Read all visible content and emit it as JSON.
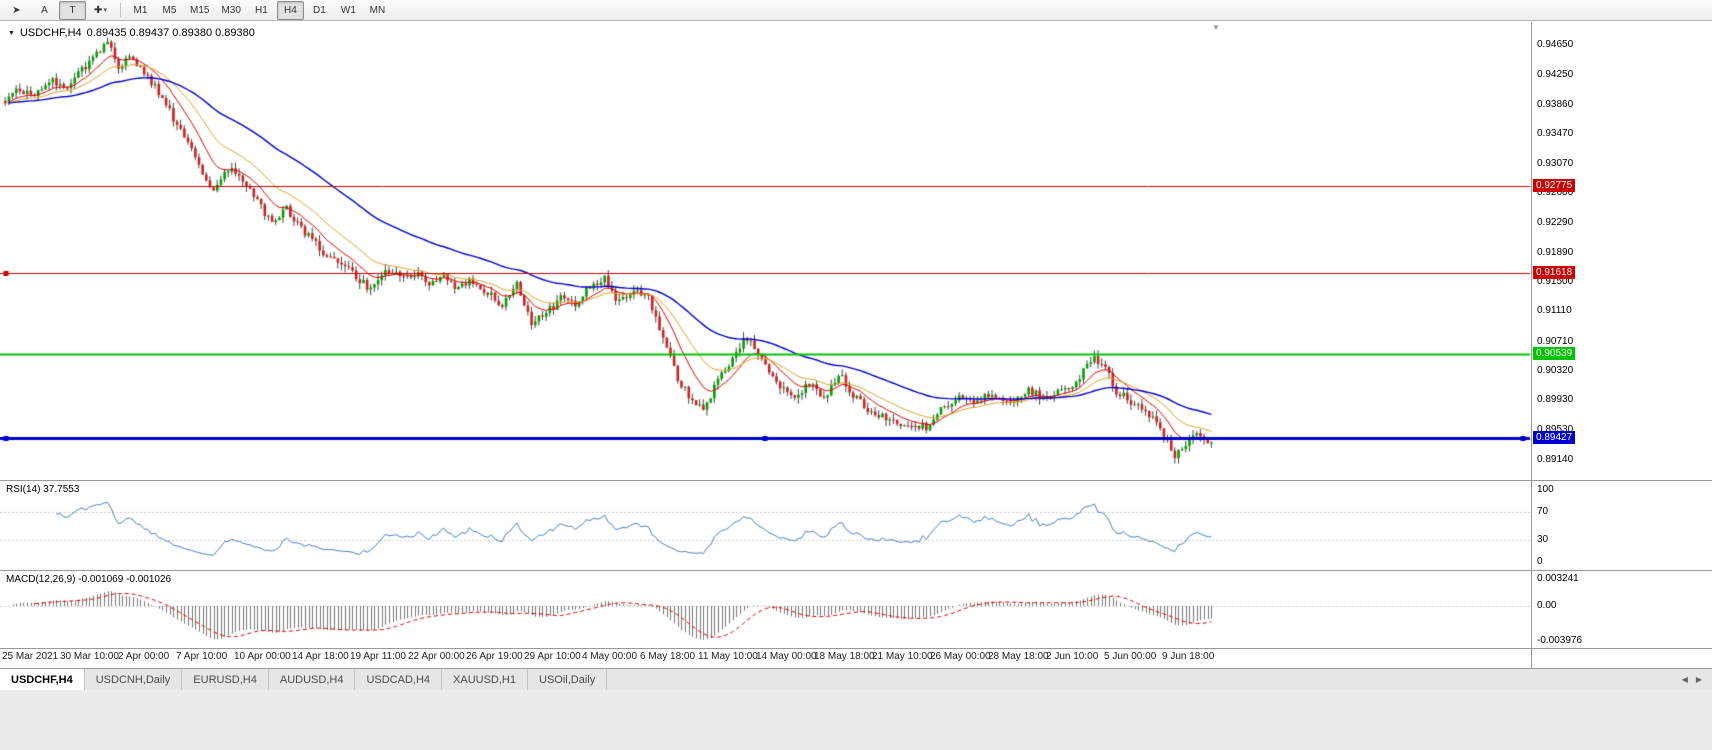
{
  "header": {
    "symbol": "USDCHF,H4",
    "quote": "0.89435 0.89437 0.89380 0.89380"
  },
  "glyphs": {
    "header_caret": "▼",
    "shift_marker": "▼",
    "toolbar_cursor": "➤",
    "toolbar_shapes": "✚",
    "caret": "▾",
    "tab_left": "◀",
    "tab_right": "▶"
  },
  "toolbar": {
    "letter_a": "A",
    "letter_t": "T",
    "timeframes": [
      "M1",
      "M5",
      "M15",
      "M30",
      "H1",
      "H4",
      "D1",
      "W1",
      "MN"
    ],
    "active_timeframe": "H4"
  },
  "price_scale": {
    "ticks": [
      "0.94650",
      "0.94250",
      "0.93860",
      "0.93470",
      "0.93070",
      "0.92680",
      "0.92290",
      "0.91890",
      "0.91500",
      "0.91110",
      "0.90710",
      "0.90320",
      "0.89930",
      "0.89530",
      "0.89140"
    ]
  },
  "indicators": {
    "rsi": {
      "label": "RSI(14) 37.7553",
      "scale": [
        {
          "label": "100",
          "value": 100
        },
        {
          "label": "70",
          "value": 70
        },
        {
          "label": "30",
          "value": 30
        },
        {
          "label": "0",
          "value": 0
        }
      ]
    },
    "macd": {
      "label": "MACD(12,26,9) -0.001069 -0.001026",
      "scale": [
        {
          "label": "0.003241",
          "value": 0.003241
        },
        {
          "label": "0.00",
          "value": 0
        },
        {
          "label": "-0.003976",
          "value": -0.003976
        }
      ]
    }
  },
  "time_axis": {
    "labels": [
      "25 Mar 2021",
      "30 Mar 10:00",
      "2 Apr 00:00",
      "7 Apr 10:00",
      "10 Apr 00:00",
      "14 Apr 18:00",
      "19 Apr 11:00",
      "22 Apr 00:00",
      "26 Apr 19:00",
      "29 Apr 10:00",
      "4 May 00:00",
      "6 May 18:00",
      "11 May 10:00",
      "14 May 00:00",
      "18 May 18:00",
      "21 May 10:00",
      "26 May 00:00",
      "28 May 18:00",
      "2 Jun 10:00",
      "5 Jun 00:00",
      "9 Jun 18:00"
    ]
  },
  "tabs": {
    "items": [
      {
        "label": "USDCHF,H4",
        "active": true
      },
      {
        "label": "USDCNH,Daily",
        "active": false
      },
      {
        "label": "EURUSD,H4",
        "active": false
      },
      {
        "label": "AUDUSD,H4",
        "active": false
      },
      {
        "label": "USDCAD,H4",
        "active": false
      },
      {
        "label": "XAUUSD,H1",
        "active": false
      },
      {
        "label": "USOil,Daily",
        "active": false
      }
    ]
  },
  "chart_data": {
    "type": "candlestick",
    "symbol": "USDCHF",
    "timeframe": "H4",
    "title": "USDCHF,H4 0.89435 0.89437 0.89380 0.89380",
    "ylim": [
      0.8895,
      0.9485
    ],
    "num_candles": 331,
    "colors": {
      "up": "#00a000",
      "down": "#d02020",
      "wick": "#444444",
      "rsi_line": "#4a7ebb",
      "macd_hist": "#777777",
      "macd_signal": "#dd0000",
      "guide_dots": "#cfcfcf"
    },
    "moving_averages": [
      {
        "period": 10,
        "color": "#e00000",
        "width": 1
      },
      {
        "period": 21,
        "color": "#dfa22b",
        "width": 1
      },
      {
        "period": 55,
        "color": "#0000cd",
        "width": 1.4
      }
    ],
    "levels": [
      {
        "label": "0.92775",
        "value": 0.92775,
        "color": "#cc0000",
        "width": 1,
        "handles": []
      },
      {
        "label": "0.91618",
        "value": 0.91618,
        "color": "#cc0000",
        "width": 1,
        "handles": [
          "left"
        ]
      },
      {
        "label": "0.90539",
        "value": 0.90539,
        "color": "#00c400",
        "width": 2,
        "handles": []
      },
      {
        "label": "0.89427",
        "value": 0.89427,
        "color": "#0000cc",
        "width": 3,
        "handles": [
          "left",
          "center",
          "right"
        ]
      }
    ],
    "rsi_period": 14,
    "macd_params": [
      12,
      26,
      9
    ],
    "anchors": [
      [
        0,
        0.9392
      ],
      [
        4,
        0.9405
      ],
      [
        8,
        0.9398
      ],
      [
        12,
        0.9418
      ],
      [
        16,
        0.9408
      ],
      [
        20,
        0.9428
      ],
      [
        24,
        0.9448
      ],
      [
        28,
        0.9468
      ],
      [
        31,
        0.9436
      ],
      [
        34,
        0.9452
      ],
      [
        38,
        0.9428
      ],
      [
        42,
        0.9402
      ],
      [
        46,
        0.9368
      ],
      [
        50,
        0.934
      ],
      [
        54,
        0.9296
      ],
      [
        57,
        0.9272
      ],
      [
        61,
        0.93
      ],
      [
        65,
        0.9286
      ],
      [
        69,
        0.9258
      ],
      [
        73,
        0.9228
      ],
      [
        77,
        0.9246
      ],
      [
        82,
        0.9216
      ],
      [
        86,
        0.9194
      ],
      [
        90,
        0.9178
      ],
      [
        94,
        0.9166
      ],
      [
        97,
        0.9152
      ],
      [
        100,
        0.914
      ],
      [
        104,
        0.9168
      ],
      [
        108,
        0.9156
      ],
      [
        112,
        0.9162
      ],
      [
        116,
        0.915
      ],
      [
        120,
        0.9158
      ],
      [
        124,
        0.9142
      ],
      [
        128,
        0.9152
      ],
      [
        132,
        0.9136
      ],
      [
        136,
        0.912
      ],
      [
        140,
        0.915
      ],
      [
        144,
        0.9098
      ],
      [
        148,
        0.9108
      ],
      [
        152,
        0.9128
      ],
      [
        156,
        0.912
      ],
      [
        160,
        0.9146
      ],
      [
        164,
        0.9154
      ],
      [
        168,
        0.9122
      ],
      [
        172,
        0.9136
      ],
      [
        176,
        0.9128
      ],
      [
        180,
        0.9078
      ],
      [
        184,
        0.9022
      ],
      [
        188,
        0.8992
      ],
      [
        191,
        0.8978
      ],
      [
        194,
        0.9012
      ],
      [
        198,
        0.9042
      ],
      [
        202,
        0.9072
      ],
      [
        205,
        0.9066
      ],
      [
        208,
        0.904
      ],
      [
        212,
        0.9012
      ],
      [
        216,
        0.8998
      ],
      [
        220,
        0.9016
      ],
      [
        224,
        0.8996
      ],
      [
        228,
        0.903
      ],
      [
        232,
        0.9
      ],
      [
        236,
        0.8982
      ],
      [
        240,
        0.8972
      ],
      [
        244,
        0.8962
      ],
      [
        248,
        0.8956
      ],
      [
        252,
        0.8958
      ],
      [
        256,
        0.898
      ],
      [
        260,
        0.8996
      ],
      [
        264,
        0.899
      ],
      [
        268,
        0.9
      ],
      [
        272,
        0.8996
      ],
      [
        276,
        0.8992
      ],
      [
        280,
        0.9006
      ],
      [
        284,
        0.8996
      ],
      [
        288,
        0.9002
      ],
      [
        292,
        0.9012
      ],
      [
        295,
        0.903
      ],
      [
        298,
        0.9048
      ],
      [
        301,
        0.9036
      ],
      [
        304,
        0.9006
      ],
      [
        308,
        0.8992
      ],
      [
        312,
        0.8976
      ],
      [
        316,
        0.8958
      ],
      [
        320,
        0.8916
      ],
      [
        323,
        0.8932
      ],
      [
        326,
        0.895
      ],
      [
        328,
        0.8944
      ],
      [
        330,
        0.8938
      ]
    ]
  }
}
